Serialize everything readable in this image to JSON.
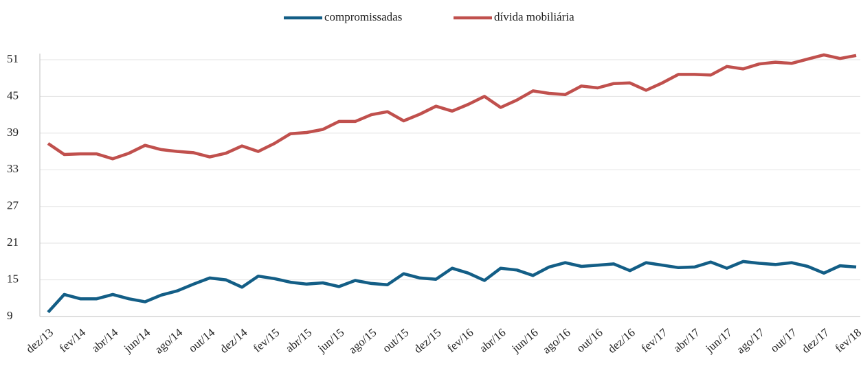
{
  "chart_data": {
    "type": "line",
    "categories": [
      "dez/13",
      null,
      "fev/14",
      null,
      "abr/14",
      null,
      "jun/14",
      null,
      "ago/14",
      null,
      "out/14",
      null,
      "dez/14",
      null,
      "fev/15",
      null,
      "abr/15",
      null,
      "jun/15",
      null,
      "ago/15",
      null,
      "out/15",
      null,
      "dez/15",
      null,
      "fev/16",
      null,
      "abr/16",
      null,
      "jun/16",
      null,
      "ago/16",
      null,
      "out/16",
      null,
      "dez/16",
      null,
      "fev/17",
      null,
      "abr/17",
      null,
      "jun/17",
      null,
      "ago/17",
      null,
      "out/17",
      null,
      "dez/17",
      null,
      "fev/18"
    ],
    "series": [
      {
        "name": "compromissadas",
        "color": "#135e86",
        "values": [
          9.7,
          12.6,
          11.9,
          11.9,
          12.6,
          11.9,
          11.4,
          12.5,
          13.2,
          14.3,
          15.3,
          15.0,
          13.8,
          15.6,
          15.2,
          14.6,
          14.3,
          14.5,
          13.9,
          14.9,
          14.4,
          14.2,
          16.0,
          15.3,
          15.1,
          16.9,
          16.1,
          14.9,
          16.9,
          16.6,
          15.7,
          17.1,
          17.8,
          17.2,
          17.4,
          17.6,
          16.5,
          17.8,
          17.4,
          17.0,
          17.1,
          17.9,
          16.9,
          18.0,
          17.7,
          17.5,
          17.8,
          17.2,
          16.1,
          17.3,
          17.1
        ]
      },
      {
        "name": "dívida mobiliária",
        "color": "#c0504d",
        "values": [
          37.3,
          35.5,
          35.6,
          35.6,
          34.8,
          35.7,
          37.0,
          36.3,
          36.0,
          35.8,
          35.1,
          35.7,
          36.9,
          36.0,
          37.3,
          38.9,
          39.1,
          39.6,
          40.9,
          40.9,
          42.0,
          42.5,
          41.0,
          42.1,
          43.4,
          42.6,
          43.7,
          45.0,
          43.2,
          44.4,
          45.9,
          45.5,
          45.3,
          46.7,
          46.4,
          47.1,
          47.2,
          46.0,
          47.2,
          48.6,
          48.6,
          48.5,
          49.9,
          49.5,
          50.3,
          50.6,
          50.4,
          51.1,
          51.8,
          51.2,
          51.7
        ]
      }
    ],
    "ylim": [
      9,
      52
    ],
    "yticks": [
      9,
      15,
      21,
      27,
      33,
      39,
      45,
      51
    ],
    "grid": true,
    "legend": "top"
  }
}
